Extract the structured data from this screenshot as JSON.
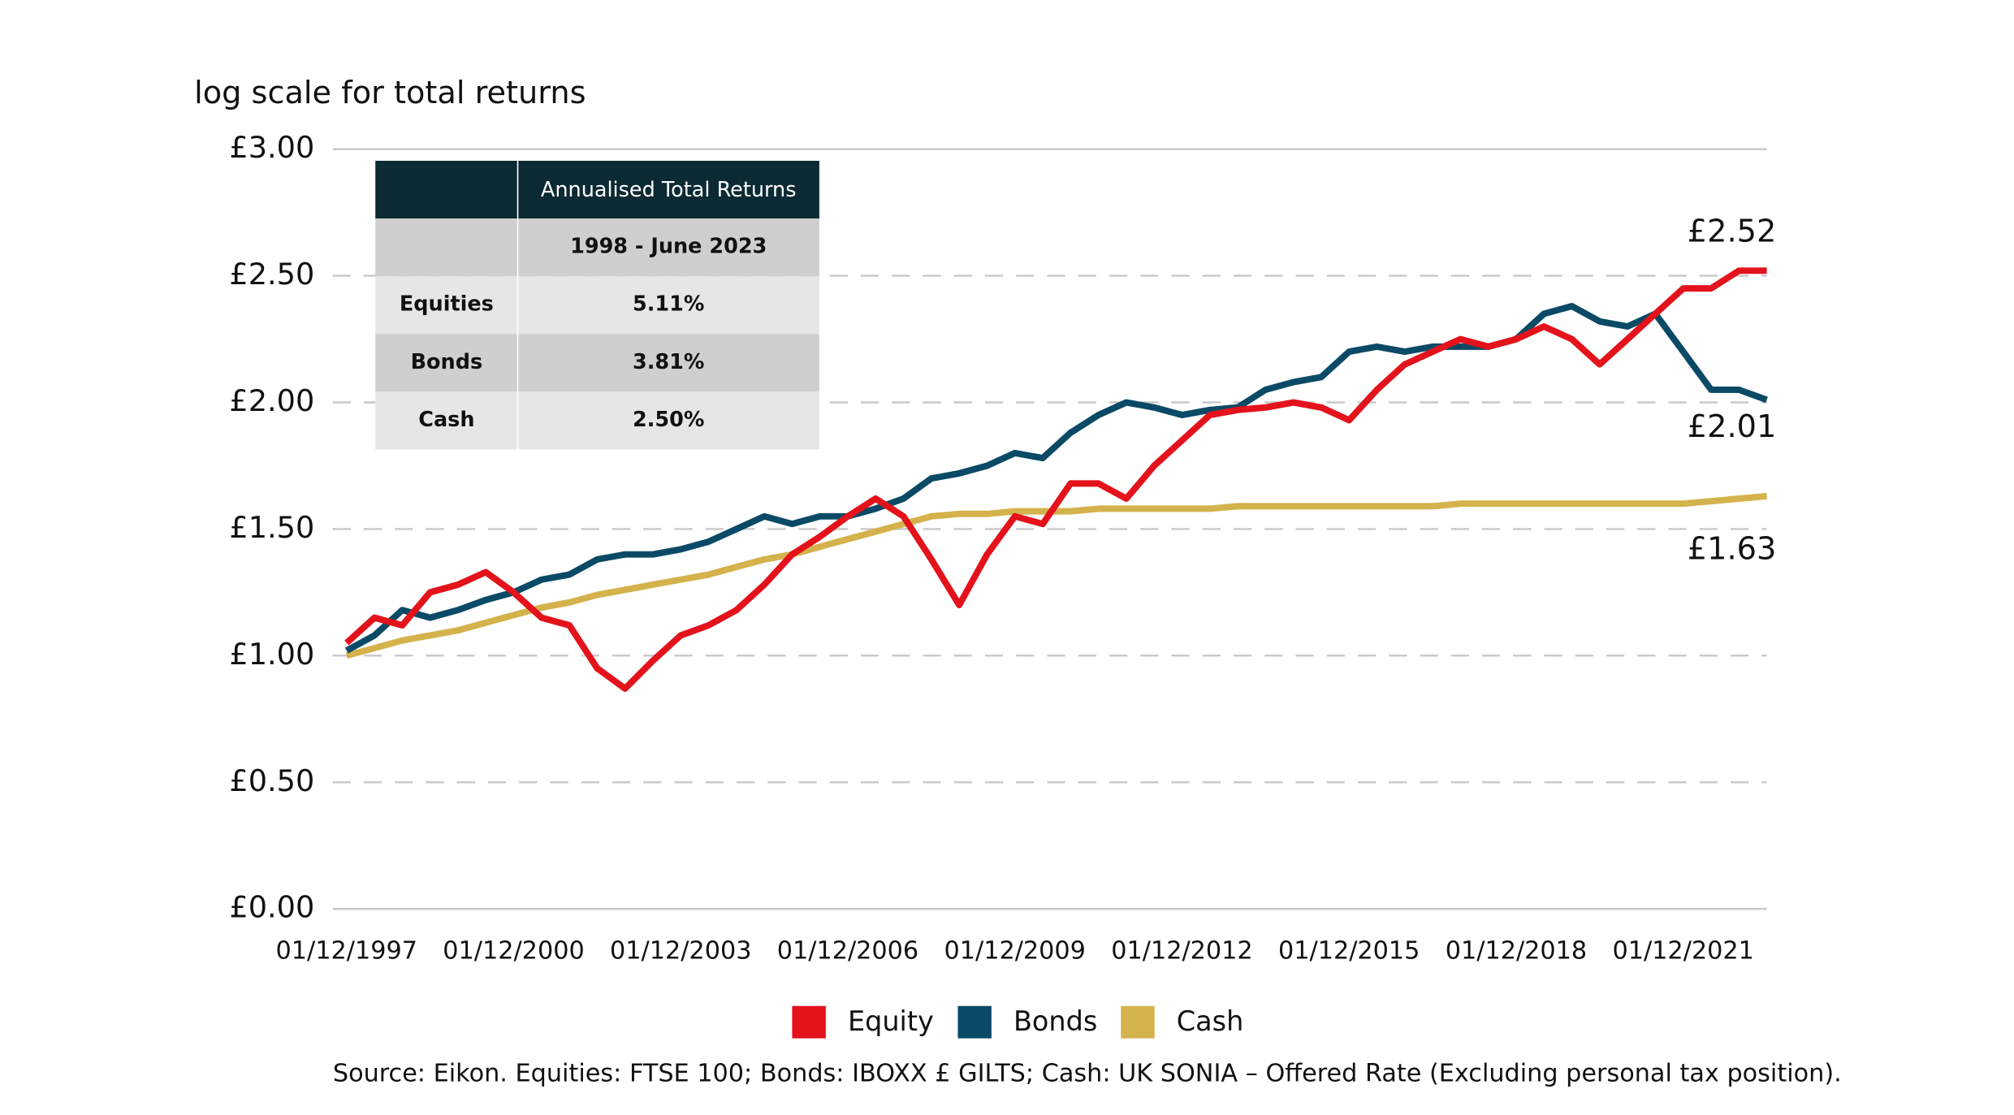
{
  "chart_data": {
    "type": "line",
    "ylabel": "log scale for total returns",
    "source": "Source: Eikon. Equities: FTSE 100; Bonds: IBOXX £ GILTS; Cash: UK SONIA – Offered Rate (Excluding personal tax position).",
    "x": [
      "01/12/1997",
      "01/06/1998",
      "01/12/1998",
      "01/06/1999",
      "01/12/1999",
      "01/06/2000",
      "01/12/2000",
      "01/06/2001",
      "01/12/2001",
      "01/06/2002",
      "01/12/2002",
      "01/06/2003",
      "01/12/2003",
      "01/06/2004",
      "01/12/2004",
      "01/06/2005",
      "01/12/2005",
      "01/06/2006",
      "01/12/2006",
      "01/06/2007",
      "01/12/2007",
      "01/06/2008",
      "01/12/2008",
      "01/06/2009",
      "01/12/2009",
      "01/06/2010",
      "01/12/2010",
      "01/06/2011",
      "01/12/2011",
      "01/06/2012",
      "01/12/2012",
      "01/06/2013",
      "01/12/2013",
      "01/06/2014",
      "01/12/2014",
      "01/06/2015",
      "01/12/2015",
      "01/06/2016",
      "01/12/2016",
      "01/06/2017",
      "01/12/2017",
      "01/06/2018",
      "01/12/2018",
      "01/06/2019",
      "01/12/2019",
      "01/06/2020",
      "01/12/2020",
      "01/06/2021",
      "01/12/2021",
      "01/06/2022",
      "01/12/2022",
      "01/06/2023"
    ],
    "series": [
      {
        "name": "Equity",
        "color": "#e3121b",
        "end_label": "£2.52",
        "values": [
          1.05,
          1.15,
          1.12,
          1.25,
          1.28,
          1.33,
          1.25,
          1.15,
          1.12,
          0.95,
          0.87,
          0.98,
          1.08,
          1.12,
          1.18,
          1.28,
          1.4,
          1.47,
          1.55,
          1.62,
          1.55,
          1.38,
          1.2,
          1.4,
          1.55,
          1.52,
          1.68,
          1.68,
          1.62,
          1.75,
          1.85,
          1.95,
          1.97,
          1.98,
          2.0,
          1.98,
          1.93,
          2.05,
          2.15,
          2.2,
          2.25,
          2.22,
          2.25,
          2.3,
          2.25,
          2.15,
          2.25,
          2.35,
          2.45,
          2.45,
          2.52,
          2.52
        ]
      },
      {
        "name": "Bonds",
        "color": "#0a4a66",
        "end_label": "£2.01",
        "values": [
          1.02,
          1.08,
          1.18,
          1.15,
          1.18,
          1.22,
          1.25,
          1.3,
          1.32,
          1.38,
          1.4,
          1.4,
          1.42,
          1.45,
          1.5,
          1.55,
          1.52,
          1.55,
          1.55,
          1.58,
          1.62,
          1.7,
          1.72,
          1.75,
          1.8,
          1.78,
          1.88,
          1.95,
          2.0,
          1.98,
          1.95,
          1.97,
          1.98,
          2.05,
          2.08,
          2.1,
          2.2,
          2.22,
          2.2,
          2.22,
          2.22,
          2.22,
          2.25,
          2.35,
          2.38,
          2.32,
          2.3,
          2.35,
          2.2,
          2.05,
          2.05,
          2.01
        ]
      },
      {
        "name": "Cash",
        "color": "#d4b24c",
        "end_label": "£1.63",
        "values": [
          1.0,
          1.03,
          1.06,
          1.08,
          1.1,
          1.13,
          1.16,
          1.19,
          1.21,
          1.24,
          1.26,
          1.28,
          1.3,
          1.32,
          1.35,
          1.38,
          1.4,
          1.43,
          1.46,
          1.49,
          1.52,
          1.55,
          1.56,
          1.56,
          1.57,
          1.57,
          1.57,
          1.58,
          1.58,
          1.58,
          1.58,
          1.58,
          1.59,
          1.59,
          1.59,
          1.59,
          1.59,
          1.59,
          1.59,
          1.59,
          1.6,
          1.6,
          1.6,
          1.6,
          1.6,
          1.6,
          1.6,
          1.6,
          1.6,
          1.61,
          1.62,
          1.63
        ]
      }
    ],
    "xlim": [
      "01/09/1997",
      "01/06/2023"
    ],
    "xticks": [
      "01/12/1997",
      "01/12/2000",
      "01/12/2003",
      "01/12/2006",
      "01/12/2009",
      "01/12/2012",
      "01/12/2015",
      "01/12/2018",
      "01/12/2021"
    ],
    "ylim": [
      0,
      3
    ],
    "yticks": [
      {
        "value": 0,
        "label": "£0.00"
      },
      {
        "value": 0.5,
        "label": "£0.50"
      },
      {
        "value": 1,
        "label": "£1.00"
      },
      {
        "value": 1.5,
        "label": "£1.50"
      },
      {
        "value": 2,
        "label": "£2.00"
      },
      {
        "value": 2.5,
        "label": "£2.50"
      },
      {
        "value": 3,
        "label": "£3.00"
      }
    ],
    "grid": true,
    "legend": "bottom",
    "table": {
      "header": "Annualised Total Returns",
      "period": "1998 - June 2023",
      "rows": [
        [
          "Equities",
          "5.11%"
        ],
        [
          "Bonds",
          "3.81%"
        ],
        [
          "Cash",
          "2.50%"
        ]
      ]
    }
  }
}
